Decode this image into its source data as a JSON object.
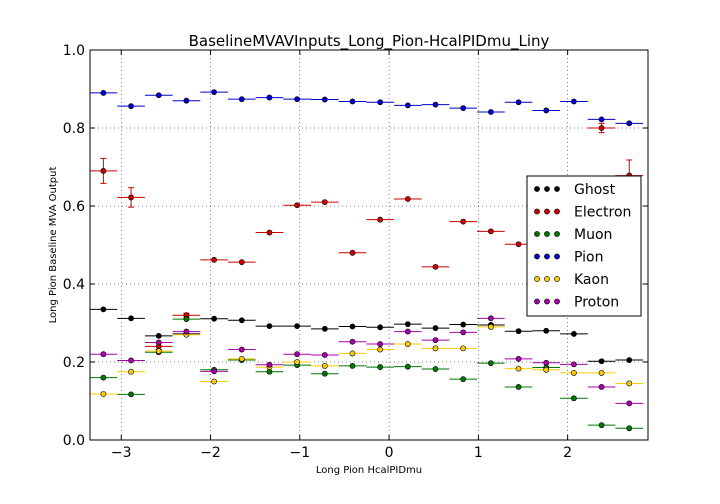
{
  "chart_data": {
    "type": "scatter",
    "title": "BaselineMVAVInputs_Long_Pion-HcalPIDmu_Liny",
    "xlabel": "Long Pion HcalPIDmu",
    "ylabel": "Long Pion Baseline MVA Output",
    "xlim": [
      -3.35,
      2.9
    ],
    "ylim": [
      0.0,
      1.0
    ],
    "xticks": [
      -3,
      -2,
      -1,
      0,
      1,
      2
    ],
    "xtick_labels": [
      "−3",
      "−2",
      "−1",
      "0",
      "1",
      "2"
    ],
    "yticks": [
      0.0,
      0.2,
      0.4,
      0.6,
      0.8,
      1.0
    ],
    "ytick_labels": [
      "0.0",
      "0.2",
      "0.4",
      "0.6",
      "0.8",
      "1.0"
    ],
    "grid": true,
    "legend_position": "right",
    "bin_half_width": 0.155,
    "x": [
      -3.2,
      -2.89,
      -2.58,
      -2.27,
      -1.96,
      -1.65,
      -1.34,
      -1.03,
      -0.72,
      -0.41,
      -0.1,
      0.21,
      0.52,
      0.83,
      1.14,
      1.45,
      1.76,
      2.07,
      2.38,
      2.69
    ],
    "series": [
      {
        "name": "Ghost",
        "color": "#000000",
        "values": [
          0.335,
          0.312,
          0.267,
          0.272,
          0.311,
          0.307,
          0.292,
          0.292,
          0.285,
          0.291,
          0.289,
          0.297,
          0.287,
          0.296,
          0.295,
          0.279,
          0.28,
          0.272,
          0.202,
          0.205
        ],
        "errors": [
          0.004,
          0.003,
          0.003,
          0.003,
          0.003,
          0.003,
          0.003,
          0.003,
          0.003,
          0.003,
          0.003,
          0.003,
          0.003,
          0.003,
          0.003,
          0.003,
          0.004,
          0.004,
          0.004,
          0.004
        ]
      },
      {
        "name": "Electron",
        "color": "#cc0000",
        "values": [
          0.69,
          0.622,
          0.24,
          0.32,
          0.462,
          0.456,
          0.532,
          0.602,
          0.61,
          0.48,
          0.565,
          0.618,
          0.444,
          0.56,
          0.535,
          0.502,
          0.49,
          0.61,
          0.8,
          0.678
        ],
        "errors": [
          0.032,
          0.025,
          0.008,
          0.005,
          0.004,
          0.003,
          0.003,
          0.003,
          0.003,
          0.003,
          0.003,
          0.003,
          0.003,
          0.003,
          0.003,
          0.004,
          0.004,
          0.005,
          0.012,
          0.04
        ]
      },
      {
        "name": "Muon",
        "color": "#007700",
        "values": [
          0.16,
          0.117,
          0.225,
          0.31,
          0.18,
          0.205,
          0.175,
          0.192,
          0.17,
          0.19,
          0.187,
          0.188,
          0.182,
          0.156,
          0.197,
          0.136,
          0.186,
          0.107,
          0.038,
          0.03
        ],
        "errors": [
          0.004,
          0.003,
          0.003,
          0.003,
          0.003,
          0.003,
          0.003,
          0.003,
          0.003,
          0.003,
          0.003,
          0.003,
          0.003,
          0.003,
          0.003,
          0.003,
          0.003,
          0.003,
          0.003,
          0.003
        ]
      },
      {
        "name": "Pion",
        "color": "#0000cc",
        "values": [
          0.89,
          0.856,
          0.884,
          0.87,
          0.892,
          0.874,
          0.878,
          0.874,
          0.873,
          0.868,
          0.866,
          0.858,
          0.86,
          0.851,
          0.841,
          0.866,
          0.845,
          0.868,
          0.822,
          0.812
        ],
        "errors": [
          0.003,
          0.003,
          0.003,
          0.003,
          0.003,
          0.003,
          0.003,
          0.003,
          0.003,
          0.003,
          0.003,
          0.003,
          0.003,
          0.003,
          0.003,
          0.003,
          0.003,
          0.003,
          0.004,
          0.004
        ]
      },
      {
        "name": "Kaon",
        "color": "#ffcc00",
        "values": [
          0.118,
          0.175,
          0.228,
          0.27,
          0.15,
          0.208,
          0.187,
          0.2,
          0.19,
          0.222,
          0.232,
          0.246,
          0.235,
          0.235,
          0.29,
          0.183,
          0.18,
          0.172,
          0.172,
          0.145
        ],
        "errors": [
          0.003,
          0.003,
          0.003,
          0.003,
          0.003,
          0.003,
          0.003,
          0.003,
          0.003,
          0.003,
          0.003,
          0.003,
          0.003,
          0.003,
          0.003,
          0.003,
          0.003,
          0.003,
          0.003,
          0.003
        ]
      },
      {
        "name": "Proton",
        "color": "#aa00aa",
        "values": [
          0.22,
          0.204,
          0.25,
          0.278,
          0.176,
          0.232,
          0.193,
          0.22,
          0.218,
          0.252,
          0.246,
          0.278,
          0.256,
          0.276,
          0.312,
          0.208,
          0.198,
          0.194,
          0.136,
          0.094
        ],
        "errors": [
          0.003,
          0.003,
          0.003,
          0.003,
          0.003,
          0.003,
          0.003,
          0.003,
          0.003,
          0.003,
          0.003,
          0.003,
          0.003,
          0.003,
          0.003,
          0.003,
          0.003,
          0.003,
          0.003,
          0.003
        ]
      }
    ]
  }
}
